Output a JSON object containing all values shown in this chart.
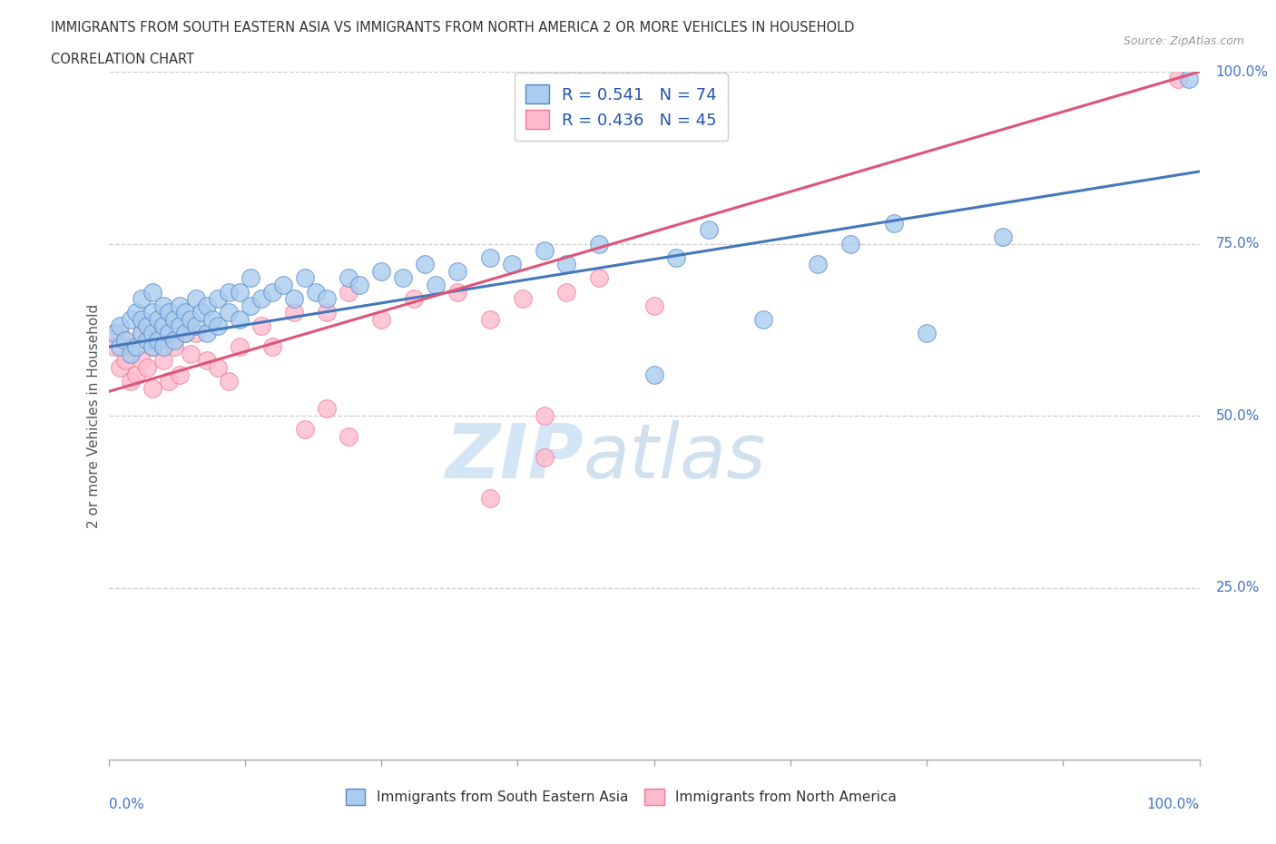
{
  "title_line1": "IMMIGRANTS FROM SOUTH EASTERN ASIA VS IMMIGRANTS FROM NORTH AMERICA 2 OR MORE VEHICLES IN HOUSEHOLD",
  "title_line2": "CORRELATION CHART",
  "source_text": "Source: ZipAtlas.com",
  "ylabel": "2 or more Vehicles in Household",
  "xlim": [
    0.0,
    1.0
  ],
  "ylim": [
    0.0,
    1.0
  ],
  "ytick_labels": [
    "25.0%",
    "50.0%",
    "75.0%",
    "100.0%"
  ],
  "ytick_positions": [
    0.25,
    0.5,
    0.75,
    1.0
  ],
  "xtick_positions": [
    0.0,
    0.125,
    0.25,
    0.375,
    0.5,
    0.625,
    0.75,
    0.875,
    1.0
  ],
  "watermark_part1": "ZIP",
  "watermark_part2": "atlas",
  "blue_R": 0.541,
  "blue_N": 74,
  "pink_R": 0.436,
  "pink_N": 45,
  "blue_color": "#aaccee",
  "blue_edge_color": "#5588cc",
  "blue_line_color": "#4477bb",
  "pink_color": "#ffbbcc",
  "pink_edge_color": "#ee7799",
  "pink_line_color": "#dd5577",
  "legend_label_blue": "Immigrants from South Eastern Asia",
  "legend_label_pink": "Immigrants from North America",
  "blue_line_x0": 0.0,
  "blue_line_y0": 0.6,
  "blue_line_x1": 1.0,
  "blue_line_y1": 0.855,
  "pink_line_x0": 0.0,
  "pink_line_y0": 0.535,
  "pink_line_x1": 1.0,
  "pink_line_y1": 1.0,
  "blue_x": [
    0.005,
    0.01,
    0.01,
    0.015,
    0.02,
    0.02,
    0.025,
    0.025,
    0.03,
    0.03,
    0.03,
    0.035,
    0.035,
    0.04,
    0.04,
    0.04,
    0.04,
    0.045,
    0.045,
    0.05,
    0.05,
    0.05,
    0.055,
    0.055,
    0.06,
    0.06,
    0.065,
    0.065,
    0.07,
    0.07,
    0.075,
    0.08,
    0.08,
    0.085,
    0.09,
    0.09,
    0.095,
    0.1,
    0.1,
    0.11,
    0.11,
    0.12,
    0.12,
    0.13,
    0.13,
    0.14,
    0.15,
    0.16,
    0.17,
    0.18,
    0.19,
    0.2,
    0.22,
    0.23,
    0.25,
    0.27,
    0.29,
    0.3,
    0.32,
    0.35,
    0.37,
    0.4,
    0.42,
    0.45,
    0.5,
    0.52,
    0.55,
    0.6,
    0.65,
    0.68,
    0.72,
    0.75,
    0.82,
    0.99
  ],
  "blue_y": [
    0.62,
    0.6,
    0.63,
    0.61,
    0.59,
    0.64,
    0.6,
    0.65,
    0.62,
    0.64,
    0.67,
    0.61,
    0.63,
    0.6,
    0.62,
    0.65,
    0.68,
    0.61,
    0.64,
    0.6,
    0.63,
    0.66,
    0.62,
    0.65,
    0.61,
    0.64,
    0.63,
    0.66,
    0.62,
    0.65,
    0.64,
    0.63,
    0.67,
    0.65,
    0.62,
    0.66,
    0.64,
    0.63,
    0.67,
    0.65,
    0.68,
    0.64,
    0.68,
    0.66,
    0.7,
    0.67,
    0.68,
    0.69,
    0.67,
    0.7,
    0.68,
    0.67,
    0.7,
    0.69,
    0.71,
    0.7,
    0.72,
    0.69,
    0.71,
    0.73,
    0.72,
    0.74,
    0.72,
    0.75,
    0.56,
    0.73,
    0.77,
    0.64,
    0.72,
    0.75,
    0.78,
    0.62,
    0.76,
    0.99
  ],
  "pink_x": [
    0.005,
    0.01,
    0.01,
    0.015,
    0.02,
    0.02,
    0.025,
    0.03,
    0.03,
    0.035,
    0.04,
    0.04,
    0.04,
    0.05,
    0.05,
    0.055,
    0.06,
    0.065,
    0.07,
    0.075,
    0.08,
    0.09,
    0.1,
    0.11,
    0.12,
    0.14,
    0.15,
    0.17,
    0.2,
    0.22,
    0.25,
    0.28,
    0.32,
    0.35,
    0.38,
    0.42,
    0.45,
    0.5,
    0.18,
    0.2,
    0.22,
    0.35,
    0.4,
    0.4,
    0.98
  ],
  "pink_y": [
    0.6,
    0.57,
    0.62,
    0.58,
    0.55,
    0.6,
    0.56,
    0.58,
    0.62,
    0.57,
    0.6,
    0.54,
    0.62,
    0.58,
    0.62,
    0.55,
    0.6,
    0.56,
    0.62,
    0.59,
    0.62,
    0.58,
    0.57,
    0.55,
    0.6,
    0.63,
    0.6,
    0.65,
    0.65,
    0.68,
    0.64,
    0.67,
    0.68,
    0.64,
    0.67,
    0.68,
    0.7,
    0.66,
    0.48,
    0.51,
    0.47,
    0.38,
    0.44,
    0.5,
    0.99
  ]
}
